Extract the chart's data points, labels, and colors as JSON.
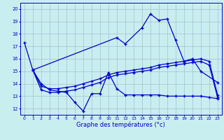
{
  "xlabel": "Graphe des températures (°c)",
  "bg_color": "#c8eef0",
  "line_color": "#0000cc",
  "grid_color": "#9ab8cc",
  "ylim": [
    11.5,
    20.5
  ],
  "xlim": [
    -0.5,
    23.5
  ],
  "yticks": [
    12,
    13,
    14,
    15,
    16,
    17,
    18,
    19,
    20
  ],
  "xticks": [
    0,
    1,
    2,
    3,
    4,
    5,
    6,
    7,
    8,
    9,
    10,
    11,
    12,
    13,
    14,
    15,
    16,
    17,
    18,
    19,
    20,
    21,
    22,
    23
  ],
  "line1_x": [
    0,
    1,
    11,
    12,
    14,
    15,
    16,
    17,
    18,
    19,
    20,
    21,
    23
  ],
  "line1_y": [
    17.3,
    15.1,
    17.7,
    17.2,
    18.5,
    19.6,
    19.1,
    19.2,
    17.5,
    15.8,
    16.0,
    15.0,
    14.1
  ],
  "line2_x": [
    1,
    2,
    3,
    4,
    5,
    6,
    7,
    8,
    9,
    10,
    11,
    12,
    13,
    14,
    15,
    16,
    17,
    18,
    19,
    20,
    21,
    22,
    23
  ],
  "line2_y": [
    15.1,
    14.0,
    13.5,
    13.4,
    13.3,
    12.5,
    11.8,
    13.2,
    13.2,
    14.9,
    13.6,
    13.1,
    13.1,
    13.1,
    13.1,
    13.1,
    13.0,
    13.0,
    13.0,
    13.0,
    13.0,
    12.9,
    12.8
  ],
  "line3_x": [
    1,
    2,
    3,
    4,
    5,
    6,
    7,
    8,
    9,
    10,
    11,
    12,
    13,
    14,
    15,
    16,
    17,
    18,
    19,
    20,
    21,
    22,
    23
  ],
  "line3_y": [
    15.1,
    13.8,
    13.6,
    13.6,
    13.7,
    13.8,
    14.0,
    14.2,
    14.4,
    14.7,
    14.9,
    15.0,
    15.1,
    15.2,
    15.3,
    15.5,
    15.6,
    15.7,
    15.8,
    15.9,
    16.0,
    15.8,
    13.1
  ],
  "line4_x": [
    1,
    2,
    3,
    4,
    5,
    6,
    7,
    8,
    9,
    10,
    11,
    12,
    13,
    14,
    15,
    16,
    17,
    18,
    19,
    20,
    21,
    22,
    23
  ],
  "line4_y": [
    15.1,
    13.5,
    13.3,
    13.3,
    13.4,
    13.5,
    13.7,
    13.9,
    14.1,
    14.5,
    14.7,
    14.8,
    14.9,
    15.0,
    15.1,
    15.3,
    15.4,
    15.5,
    15.6,
    15.7,
    15.8,
    15.5,
    12.9
  ]
}
